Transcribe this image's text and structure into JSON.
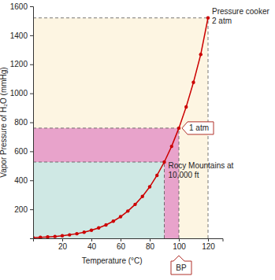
{
  "chart_data": {
    "type": "line",
    "xlabel": "Temperature (°C)",
    "ylabel": "Vapor Pressure of H₂O (mmHg)",
    "x": [
      0,
      5,
      10,
      15,
      20,
      25,
      30,
      35,
      40,
      45,
      50,
      55,
      60,
      65,
      70,
      75,
      80,
      85,
      90,
      95,
      100,
      105,
      110,
      115,
      120
    ],
    "values": [
      4.6,
      6.5,
      9.2,
      12.8,
      17.5,
      23.8,
      31.8,
      42.2,
      55.3,
      71.9,
      92.5,
      118,
      149,
      188,
      234,
      289,
      355,
      434,
      526,
      634,
      760,
      906,
      1075,
      1268,
      1520
    ],
    "color": "#cc0000",
    "marker": "circle",
    "xlim": [
      0,
      130
    ],
    "xticks": [
      20,
      40,
      60,
      80,
      100,
      120
    ],
    "ylim": [
      0,
      1600
    ],
    "yticks": [
      200,
      400,
      600,
      800,
      1000,
      1200,
      1400,
      1600
    ],
    "annotations": [
      {
        "text": [
          "Pressure cooker",
          "2 atm"
        ],
        "x": 120,
        "y": 1520,
        "color": "#fdf5e2"
      },
      {
        "text": [
          "1 atm"
        ],
        "x": 100,
        "y": 760,
        "color": "#e8a3cb"
      },
      {
        "text": [
          "Rocy Mountains at",
          "10,000 ft"
        ],
        "x": 90,
        "y": 526,
        "color": "#cfe8e4"
      }
    ],
    "x_marker": {
      "text": "BP",
      "x": 100
    }
  }
}
